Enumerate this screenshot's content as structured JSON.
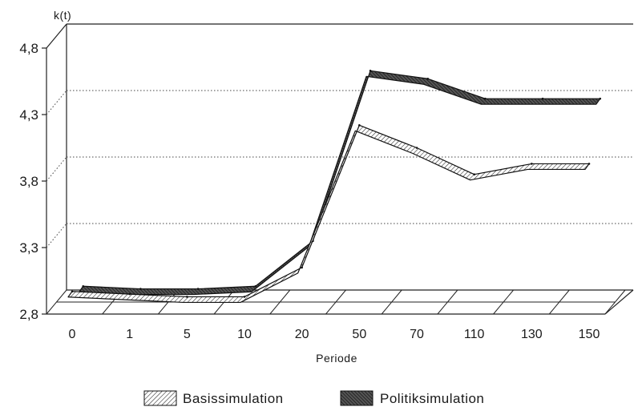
{
  "chart_data": {
    "type": "line",
    "style": "3d-ribbon",
    "ylabel": "k(t)",
    "xlabel": "Periode",
    "categories": [
      "0",
      "1",
      "5",
      "10",
      "20",
      "50",
      "70",
      "110",
      "130",
      "150"
    ],
    "y_ticks": [
      "2,8",
      "3,3",
      "3,8",
      "4,3",
      "4,8"
    ],
    "ylim": [
      2.8,
      4.8
    ],
    "grid": "horizontal dotted",
    "legend_position": "bottom",
    "series": [
      {
        "name": "Basissimulation",
        "pattern": "light diagonal hatch",
        "values": [
          2.97,
          2.95,
          2.93,
          2.93,
          3.15,
          4.22,
          4.05,
          3.85,
          3.93,
          3.93
        ]
      },
      {
        "name": "Politiksimulation",
        "pattern": "dark diagonal hatch",
        "values": [
          2.91,
          2.89,
          2.89,
          2.91,
          3.25,
          4.53,
          4.47,
          4.32,
          4.32,
          4.32
        ]
      }
    ]
  }
}
